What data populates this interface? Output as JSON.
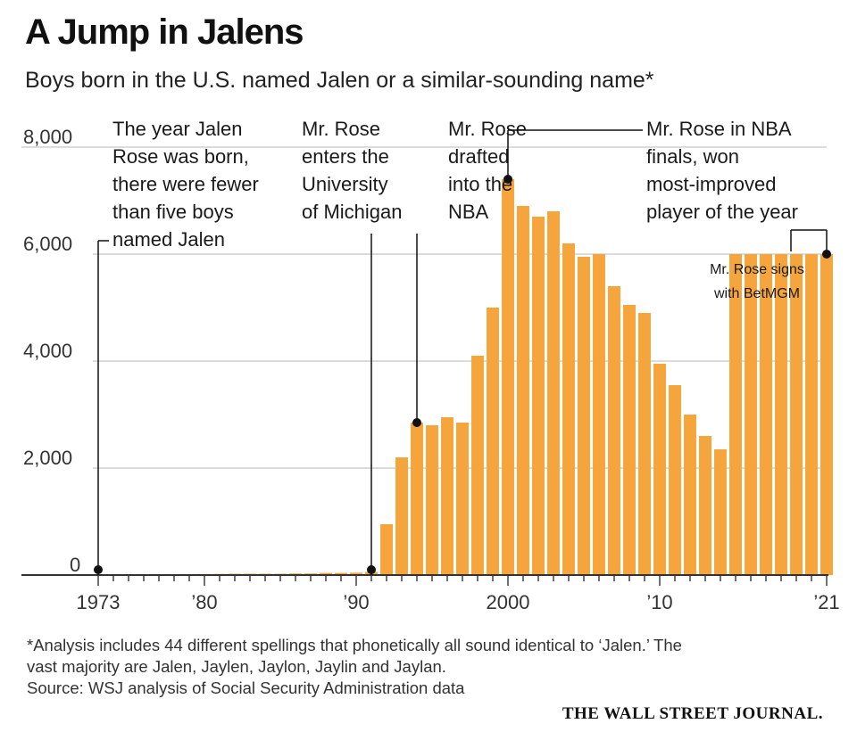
{
  "title": "A Jump in Jalens",
  "subtitle": "Boys born in the U.S. named Jalen or a similar-sounding name*",
  "chart_data": {
    "type": "bar",
    "x": [
      1973,
      1974,
      1975,
      1976,
      1977,
      1978,
      1979,
      1980,
      1981,
      1982,
      1983,
      1984,
      1985,
      1986,
      1987,
      1988,
      1989,
      1990,
      1991,
      1992,
      1993,
      1994,
      1995,
      1996,
      1997,
      1998,
      1999,
      2000,
      2001,
      2002,
      2003,
      2004,
      2005,
      2006,
      2007,
      2008,
      2009,
      2010,
      2011,
      2012,
      2013,
      2014,
      2015,
      2016,
      2017,
      2018,
      2019,
      2020,
      2021
    ],
    "values": [
      4,
      6,
      8,
      10,
      12,
      14,
      16,
      20,
      22,
      25,
      25,
      25,
      25,
      30,
      30,
      40,
      40,
      45,
      60,
      950,
      2200,
      2850,
      2800,
      2950,
      2850,
      4100,
      5000,
      7400,
      6900,
      6700,
      6800,
      6200,
      5950,
      6000,
      5400,
      5050,
      4900,
      3950,
      3550,
      3000,
      2600,
      2350,
      6000,
      6000,
      6000,
      6000,
      6000,
      6000,
      6000
    ],
    "bar_color": "#F5A53B",
    "ylim": [
      0,
      8000
    ],
    "yticks": [
      0,
      2000,
      4000,
      6000,
      8000
    ],
    "ytick_labels": [
      "0",
      "2,000",
      "4,000",
      "6,000",
      "8,000"
    ],
    "xticks": [
      1973,
      1980,
      1990,
      2000,
      2010,
      2021
    ],
    "xtick_labels": [
      "1973",
      "’80",
      "’90",
      "2000",
      "’10",
      "’21"
    ],
    "grid": true,
    "annotations": [
      {
        "year": 1973,
        "value": 0,
        "lines": [
          "The year Jalen",
          "Rose was born,",
          "there were fewer",
          "than five boys",
          "named Jalen"
        ]
      },
      {
        "year": 1991,
        "value": 0,
        "lines": [
          "Mr. Rose",
          "enters the",
          "University",
          "of Michigan"
        ]
      },
      {
        "year": 1994,
        "value": 2850,
        "lines": [
          "Mr. Rose",
          "drafted",
          "into the",
          "NBA"
        ]
      },
      {
        "year": 2000,
        "value": 7400,
        "lines": [
          "Mr. Rose in NBA",
          "finals, won",
          "most-improved",
          "player of the year"
        ]
      },
      {
        "year": 2021,
        "value": 6000,
        "lines": [
          "Mr. Rose signs",
          "with BetMGM"
        ]
      }
    ]
  },
  "footnote": {
    "line1": "*Analysis includes 44 different spellings that phonetically all sound identical to ‘Jalen.’ The",
    "line2": "vast majority are Jalen, Jaylen, Jaylon, Jaylin and Jaylan.",
    "source": "Source: WSJ analysis of Social Security Administration data"
  },
  "brand": "THE WALL STREET JOURNAL."
}
